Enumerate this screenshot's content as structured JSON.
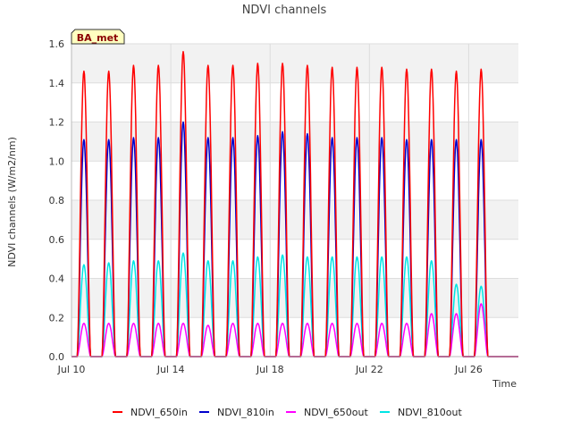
{
  "chart_data": {
    "type": "line",
    "title": "NDVI channels",
    "xlabel": "Time",
    "ylabel": "NDVI channels (W/m2/nm)",
    "badge": "BA_met",
    "ylim": [
      0.0,
      1.6
    ],
    "xlim_days": [
      10.0,
      28.0
    ],
    "yticks": [
      {
        "value": 0.0,
        "label": "0.0"
      },
      {
        "value": 0.2,
        "label": "0.2"
      },
      {
        "value": 0.4,
        "label": "0.4"
      },
      {
        "value": 0.6,
        "label": "0.6"
      },
      {
        "value": 0.8,
        "label": "0.8"
      },
      {
        "value": 1.0,
        "label": "1.0"
      },
      {
        "value": 1.2,
        "label": "1.2"
      },
      {
        "value": 1.4,
        "label": "1.4"
      },
      {
        "value": 1.6,
        "label": "1.6"
      }
    ],
    "xticks": [
      {
        "day": 10,
        "label": "Jul 10"
      },
      {
        "day": 14,
        "label": "Jul 14"
      },
      {
        "day": 18,
        "label": "Jul 18"
      },
      {
        "day": 22,
        "label": "Jul 22"
      },
      {
        "day": 26,
        "label": "Jul 26"
      }
    ],
    "days": [
      10,
      11,
      12,
      13,
      14,
      15,
      16,
      17,
      18,
      19,
      20,
      21,
      22,
      23,
      24,
      25,
      26
    ],
    "daylight_start_hour": 5.5,
    "daylight_end_hour": 18.5,
    "series": [
      {
        "name": "NDVI_650in",
        "color": "#ff0000",
        "daily_peak": [
          1.46,
          1.46,
          1.49,
          1.49,
          1.56,
          1.49,
          1.49,
          1.5,
          1.5,
          1.49,
          1.48,
          1.48,
          1.48,
          1.47,
          1.47,
          1.46,
          1.47
        ]
      },
      {
        "name": "NDVI_810in",
        "color": "#0000cc",
        "daily_peak": [
          1.11,
          1.11,
          1.12,
          1.12,
          1.2,
          1.12,
          1.12,
          1.13,
          1.15,
          1.14,
          1.12,
          1.12,
          1.12,
          1.11,
          1.11,
          1.11,
          1.11
        ]
      },
      {
        "name": "NDVI_650out",
        "color": "#ff00ff",
        "daily_peak": [
          0.17,
          0.17,
          0.17,
          0.17,
          0.17,
          0.16,
          0.17,
          0.17,
          0.17,
          0.17,
          0.17,
          0.17,
          0.17,
          0.17,
          0.22,
          0.22,
          0.27
        ]
      },
      {
        "name": "NDVI_810out",
        "color": "#00e5e5",
        "daily_peak": [
          0.47,
          0.48,
          0.49,
          0.49,
          0.53,
          0.49,
          0.49,
          0.51,
          0.52,
          0.51,
          0.51,
          0.51,
          0.51,
          0.51,
          0.49,
          0.37,
          0.36
        ]
      }
    ]
  }
}
